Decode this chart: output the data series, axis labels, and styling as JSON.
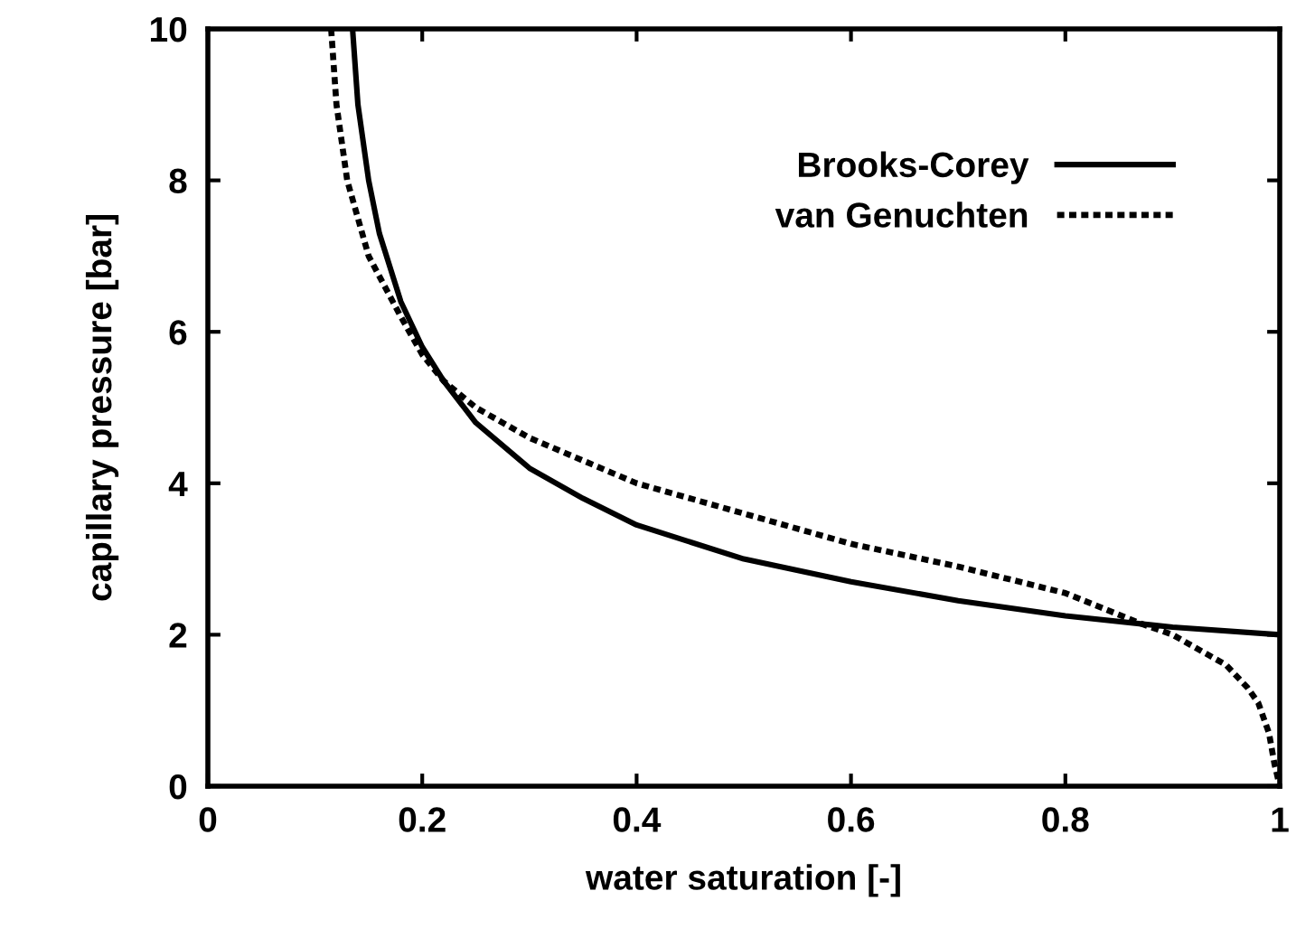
{
  "chart_data": {
    "type": "line",
    "xlabel": "water saturation [-]",
    "ylabel": "capillary pressure [bar]",
    "xlim": [
      0,
      1
    ],
    "ylim": [
      0,
      10
    ],
    "xticks": [
      0,
      0.2,
      0.4,
      0.6,
      0.8,
      1
    ],
    "yticks": [
      0,
      2,
      4,
      6,
      8,
      10
    ],
    "grid": false,
    "legend": "top right",
    "series": [
      {
        "name": "Brooks-Corey",
        "color": "#000000",
        "line_style": "solid",
        "x": [
          0.135,
          0.14,
          0.15,
          0.16,
          0.18,
          0.2,
          0.22,
          0.25,
          0.3,
          0.35,
          0.4,
          0.5,
          0.6,
          0.7,
          0.8,
          0.9,
          1.0
        ],
        "values": [
          10,
          9.0,
          8.0,
          7.3,
          6.4,
          5.8,
          5.35,
          4.8,
          4.2,
          3.8,
          3.45,
          3.0,
          2.7,
          2.45,
          2.25,
          2.1,
          2.0
        ]
      },
      {
        "name": "van Genuchten",
        "color": "#000000",
        "line_style": "dotted",
        "x": [
          0.115,
          0.12,
          0.13,
          0.15,
          0.18,
          0.2,
          0.22,
          0.25,
          0.3,
          0.4,
          0.5,
          0.6,
          0.7,
          0.8,
          0.87,
          0.9,
          0.95,
          0.97,
          0.98,
          0.99,
          0.995,
          1.0
        ],
        "values": [
          10,
          9.0,
          8.0,
          7.0,
          6.2,
          5.7,
          5.35,
          5.0,
          4.6,
          4.0,
          3.6,
          3.2,
          2.9,
          2.55,
          2.15,
          2.0,
          1.6,
          1.3,
          1.1,
          0.7,
          0.3,
          0
        ]
      }
    ]
  }
}
